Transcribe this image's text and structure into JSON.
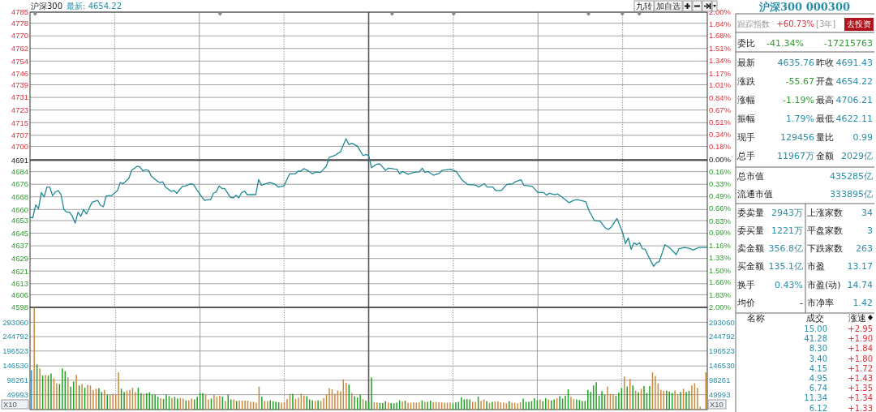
{
  "chart_data": [
    {
      "type": "line",
      "title": "沪深300",
      "subtitle": "最新: 4654.22",
      "annotations": [
        "九转",
        "加自选"
      ],
      "tick_labels": "y",
      "grid": true,
      "categories": [
        null,
        null,
        null,
        null,
        null,
        null,
        null,
        null,
        null,
        null,
        null,
        null,
        null,
        null,
        null,
        null,
        null,
        null,
        null,
        null,
        null,
        null,
        null,
        null,
        null,
        null,
        null,
        null,
        null,
        null,
        null,
        null,
        null,
        null,
        null,
        null,
        null,
        null,
        null,
        null,
        null,
        null,
        null,
        null,
        null,
        null,
        null,
        null,
        null,
        null,
        null,
        null,
        null,
        null,
        null,
        null,
        null,
        null,
        null,
        null,
        null,
        null,
        null,
        null,
        null,
        null,
        null,
        null,
        null,
        null,
        null,
        null,
        null,
        null,
        null,
        null,
        null,
        null,
        null,
        null,
        null,
        null,
        null,
        null,
        null,
        null,
        null,
        null,
        null,
        null,
        null,
        null,
        null,
        null,
        null,
        null,
        null,
        null,
        null,
        null,
        null,
        null,
        null,
        null,
        null,
        null,
        null,
        null,
        null,
        null,
        null,
        null,
        null,
        null,
        null,
        null,
        null,
        null,
        null,
        null,
        null,
        null,
        null,
        null,
        null,
        null,
        null,
        null,
        null,
        null,
        null,
        null,
        null,
        null,
        null,
        null,
        null,
        null,
        null,
        null,
        null,
        null,
        null,
        null,
        null,
        null,
        null,
        null,
        null,
        null,
        null,
        null,
        null,
        null,
        null,
        null,
        null,
        null,
        null,
        null,
        null,
        null,
        null,
        null,
        null,
        null,
        null,
        null,
        null,
        null,
        null,
        null,
        null,
        null,
        null,
        null,
        null,
        null,
        null,
        null,
        null,
        null,
        null,
        null,
        null,
        null,
        null,
        null,
        null,
        null,
        null,
        null,
        null,
        null,
        null,
        null,
        null,
        null,
        null,
        null,
        null,
        null,
        null,
        null,
        null,
        null,
        null,
        null,
        null,
        null,
        null,
        null,
        null,
        null,
        null,
        null,
        null,
        null,
        null,
        null,
        null,
        null,
        null,
        null,
        null,
        null,
        null,
        null,
        null,
        null,
        null,
        null,
        null,
        null,
        null,
        null,
        null,
        null,
        null,
        null,
        null
      ],
      "ylim": [
        4598,
        4785
      ],
      "yticks": [
        4598,
        4606,
        4613,
        4621,
        4629,
        4637,
        4645,
        4653,
        4660,
        4668,
        4676,
        4684,
        4691,
        4700,
        4707,
        4715,
        4723,
        4731,
        4739,
        4746,
        4754,
        4762,
        4770,
        4778,
        4785
      ],
      "y2lim": [
        -2,
        2
      ],
      "y2ticks": [
        {
          "value": -2,
          "label": "2.00%"
        },
        {
          "value": -1.83,
          "label": "1.83%"
        },
        {
          "value": -1.66,
          "label": "1.66%"
        },
        {
          "value": -1.5,
          "label": "1.50%"
        },
        {
          "value": -1.33,
          "label": "1.33%"
        },
        {
          "value": -1.16,
          "label": "1.16%"
        },
        {
          "value": -0.99,
          "label": "0.99%"
        },
        {
          "value": -0.83,
          "label": "0.83%"
        },
        {
          "value": -0.66,
          "label": "0.66%"
        },
        {
          "value": -0.49,
          "label": "0.49%"
        },
        {
          "value": -0.33,
          "label": "0.33%"
        },
        {
          "value": -0.16,
          "label": "0.16%"
        },
        {
          "value": 0,
          "label": "0.00%"
        },
        {
          "value": 0.18,
          "label": "0.18%"
        },
        {
          "value": 0.34,
          "label": "0.34%"
        },
        {
          "value": 0.51,
          "label": "0.51%"
        },
        {
          "value": 0.67,
          "label": "0.67%"
        },
        {
          "value": 0.84,
          "label": "0.84%"
        },
        {
          "value": 1.01,
          "label": "1.01%"
        },
        {
          "value": 1.17,
          "label": "1.17%"
        },
        {
          "value": 1.34,
          "label": "1.34%"
        },
        {
          "value": 1.51,
          "label": "1.51%"
        },
        {
          "value": 1.68,
          "label": "1.68%"
        },
        {
          "value": 1.84,
          "label": "1.84%"
        },
        {
          "value": 2,
          "label": "2.00%"
        }
      ],
      "ref_lines": [
        {
          "axis": "y",
          "value": 4691.43
        }
      ],
      "series": [
        {
          "color": "#1f8a94",
          "values": [
            4654.9,
            4654.9,
            4662.9,
            4660.5,
            4670.8,
            4668.0,
            4674.2,
            4674.2,
            4668.7,
            4671.1,
            4672.0,
            4669.4,
            4660.0,
            4658.3,
            4658.3,
            4655.7,
            4651.4,
            4658.3,
            4655.7,
            4660.0,
            4657.1,
            4660.9,
            4664.6,
            4665.2,
            4665.7,
            4662.6,
            4661.7,
            4668.6,
            4668.8,
            4668.9,
            4670.5,
            4672.0,
            4677.1,
            4676.3,
            4678.0,
            4679.7,
            4684.8,
            4686.1,
            4687.4,
            4686.9,
            4684.5,
            4685.2,
            4684.8,
            4681.1,
            4679.6,
            4678.1,
            4677.1,
            4677.6,
            4674.2,
            4672.9,
            4671.5,
            4672.0,
            4670.3,
            4672.5,
            4674.6,
            4674.9,
            4675.6,
            4676.3,
            4675.8,
            4672.8,
            4670.3,
            4667.7,
            4665.7,
            4666.3,
            4666.3,
            4670.3,
            4671.1,
            4674.9,
            4673.4,
            4673.2,
            4670.5,
            4667.7,
            4667.4,
            4669.1,
            4667.4,
            4670.8,
            4671.6,
            4669.4,
            4669.4,
            4669.4,
            4669.4,
            4679.0,
            4675.4,
            4676.0,
            4676.6,
            4677.1,
            4676.5,
            4675.8,
            4674.2,
            4674.6,
            4674.9,
            4678.8,
            4682.6,
            4682.6,
            4682.6,
            4684.3,
            4684.3,
            4685.9,
            4685.0,
            4684.0,
            4682.6,
            4683.6,
            4683.6,
            4683.5,
            4685.5,
            4687.4,
            4693.0,
            4693.6,
            4694.2,
            4695.4,
            4696.5,
            4700.7,
            4704.9,
            4701.1,
            4702.0,
            4701.1,
            4700.2,
            4697.2,
            4694.2,
            4694.8,
            4694.2,
            4686.5,
            4687.7,
            4688.8,
            4688.8,
            4686.8,
            4684.8,
            4686.2,
            4686.0,
            4685.7,
            4685.5,
            4682.6,
            4684.1,
            4683.2,
            4682.3,
            4682.9,
            4683.5,
            4683.7,
            4683.9,
            4686.2,
            4683.5,
            4684.1,
            4682.9,
            4681.7,
            4682.3,
            4682.8,
            4684.8,
            4685.0,
            4685.3,
            4685.5,
            4684.8,
            4684.1,
            4681.5,
            4678.8,
            4677.4,
            4675.9,
            4675.7,
            4675.6,
            4675.4,
            4674.2,
            4675.3,
            4676.3,
            4674.2,
            4674.2,
            4674.2,
            4672.0,
            4672.0,
            4672.0,
            4674.0,
            4675.9,
            4676.1,
            4676.3,
            4677.6,
            4678.2,
            4678.8,
            4675.4,
            4675.1,
            4674.9,
            4674.6,
            4672.7,
            4670.8,
            4670.8,
            4670.8,
            4669.1,
            4670.3,
            4669.9,
            4669.4,
            4669.8,
            4668.5,
            4667.2,
            4665.8,
            4664.3,
            4665.2,
            4666.0,
            4666.3,
            4665.8,
            4665.4,
            4664.9,
            4659.5,
            4656.3,
            4653.0,
            4652.8,
            4652.6,
            4650.3,
            4648.0,
            4647.5,
            4648.9,
            4651.6,
            4654.3,
            4649.9,
            4645.4,
            4638.3,
            4642.0,
            4634.8,
            4638.9,
            4637.7,
            4638.9,
            4635.2,
            4634.8,
            4630.9,
            4627.5,
            4624.0,
            4626.3,
            4627.0,
            4632.4,
            4637.7,
            4636.5,
            4635.2,
            4633.3,
            4631.4,
            4635.2,
            4635.6,
            4636.0,
            4635.6,
            4635.2,
            4634.3,
            4635.2,
            4636.0,
            4636.0,
            4636.0,
            4636.0
          ]
        }
      ]
    },
    {
      "type": "bar",
      "tick_labels": "y",
      "grid": true,
      "ylabel": "X10",
      "y2label": "X10",
      "categories": [
        null,
        null,
        null,
        null,
        null,
        null,
        null,
        null,
        null,
        null,
        null,
        null,
        null,
        null,
        null,
        null,
        null,
        null,
        null,
        null,
        null,
        null,
        null,
        null,
        null,
        null,
        null,
        null,
        null,
        null,
        null,
        null,
        null,
        null,
        null,
        null,
        null,
        null,
        null,
        null,
        null,
        null,
        null,
        null,
        null,
        null,
        null,
        null,
        null,
        null,
        null,
        null,
        null,
        null,
        null,
        null,
        null,
        null,
        null,
        null,
        null,
        null,
        null,
        null,
        null,
        null,
        null,
        null,
        null,
        null,
        null,
        null,
        null,
        null,
        null,
        null,
        null,
        null,
        null,
        null,
        null,
        null,
        null,
        null,
        null,
        null,
        null,
        null,
        null,
        null,
        null,
        null,
        null,
        null,
        null,
        null,
        null,
        null,
        null,
        null,
        null,
        null,
        null,
        null,
        null,
        null,
        null,
        null,
        null,
        null,
        null,
        null,
        null,
        null,
        null,
        null,
        null,
        null,
        null,
        null,
        null,
        null,
        null,
        null,
        null,
        null,
        null,
        null,
        null,
        null,
        null,
        null,
        null,
        null,
        null,
        null,
        null,
        null,
        null,
        null,
        null,
        null,
        null,
        null,
        null,
        null,
        null,
        null,
        null,
        null,
        null,
        null,
        null,
        null,
        null,
        null,
        null,
        null,
        null,
        null,
        null,
        null,
        null,
        null,
        null,
        null,
        null,
        null,
        null,
        null,
        null,
        null,
        null,
        null,
        null,
        null,
        null,
        null,
        null,
        null,
        null,
        null,
        null,
        null,
        null,
        null,
        null,
        null,
        null,
        null,
        null,
        null,
        null,
        null,
        null,
        null,
        null,
        null,
        null,
        null,
        null,
        null,
        null,
        null,
        null,
        null,
        null,
        null,
        null,
        null,
        null,
        null,
        null,
        null,
        null,
        null,
        null,
        null,
        null,
        null,
        null,
        null,
        null,
        null,
        null,
        null,
        null,
        null,
        null,
        null,
        null,
        null,
        null,
        null,
        null,
        null,
        null,
        null,
        null,
        null,
        null
      ],
      "ylim": [
        0,
        343000
      ],
      "yticks": [
        49993,
        98261,
        146530,
        196523,
        244792,
        293060
      ],
      "y2lim": [
        0,
        343000
      ],
      "y2ticks": [
        49993,
        98261,
        146530,
        196523,
        244792,
        293060
      ],
      "values": [
        132000,
        342000,
        152000,
        138000,
        114000,
        116000,
        114000,
        121000,
        105000,
        88000,
        86000,
        138000,
        129000,
        108000,
        77000,
        94000,
        116000,
        81000,
        86000,
        73000,
        83000,
        81000,
        66000,
        70000,
        72000,
        59000,
        66000,
        50000,
        50000,
        53000,
        50000,
        125000,
        70000,
        59000,
        63000,
        66000,
        73000,
        59000,
        74000,
        55000,
        53000,
        55000,
        58000,
        50000,
        50000,
        43000,
        38000,
        36000,
        50000,
        45000,
        39000,
        43000,
        37000,
        39000,
        37000,
        31000,
        31000,
        37000,
        34000,
        43000,
        56000,
        55000,
        50000,
        34000,
        37000,
        50000,
        43000,
        46000,
        43000,
        29000,
        50000,
        34000,
        34000,
        29000,
        30000,
        30000,
        30000,
        30000,
        26000,
        26000,
        23000,
        77000,
        43000,
        29000,
        29000,
        31000,
        28000,
        26000,
        24000,
        23000,
        24000,
        36000,
        53000,
        53000,
        36000,
        40000,
        53000,
        47000,
        45000,
        34000,
        31000,
        29000,
        31000,
        29000,
        39000,
        50000,
        72000,
        68000,
        53000,
        64000,
        61000,
        102000,
        90000,
        84000,
        56000,
        45000,
        41000,
        50000,
        35000,
        30000,
        26000,
        108000,
        24000,
        24000,
        22000,
        22000,
        28000,
        23000,
        22000,
        21000,
        23000,
        31000,
        27000,
        30000,
        23000,
        23000,
        24000,
        23000,
        24000,
        31000,
        26000,
        26000,
        30000,
        24000,
        26000,
        24000,
        24000,
        23000,
        23000,
        23000,
        21000,
        24000,
        26000,
        41000,
        34000,
        35000,
        34000,
        26000,
        26000,
        43000,
        29000,
        34000,
        28000,
        22000,
        26000,
        27000,
        28000,
        24000,
        23000,
        21000,
        28000,
        23000,
        23000,
        21000,
        24000,
        37000,
        26000,
        26000,
        28000,
        38000,
        31000,
        34000,
        28000,
        38000,
        34000,
        31000,
        34000,
        38000,
        45000,
        37000,
        46000,
        68000,
        43000,
        35000,
        34000,
        32000,
        29000,
        29000,
        66000,
        59000,
        81000,
        92000,
        47000,
        62000,
        50000,
        77000,
        53000,
        50000,
        46000,
        57000,
        72000,
        111000,
        77000,
        103000,
        81000,
        63000,
        58000,
        70000,
        79000,
        56000,
        79000,
        125000,
        113000,
        88000,
        66000,
        63000,
        64000,
        61000,
        56000,
        64000,
        52000,
        59000,
        70000,
        59000,
        63000,
        81000,
        88000,
        73000,
        10000,
        null,
        125000
      ],
      "colors": [
        "#3f95b5",
        "#c98a3e",
        "#21a121",
        "#c98a3e",
        "#21a121",
        "#c98a3e",
        "#21a121",
        "#21a121",
        "#c98a3e",
        "#c98a3e",
        "#21a121",
        "#21a121",
        "#21a121",
        "#c98a3e",
        "#21a121",
        "#21a121",
        "#c98a3e",
        "#21a121",
        "#c98a3e",
        "#21a121",
        "#c98a3e",
        "#c98a3e",
        "#c98a3e",
        "#c98a3e",
        "#21a121",
        "#21a121",
        "#c98a3e",
        "#21a121",
        "#c98a3e",
        "#c98a3e",
        "#c98a3e",
        "#c98a3e",
        "#21a121",
        "#21a121",
        "#c98a3e",
        "#c98a3e",
        "#c98a3e",
        "#c98a3e",
        "#21a121",
        "#21a121",
        "#c98a3e",
        "#21a121",
        "#21a121",
        "#21a121",
        "#21a121",
        "#21a121",
        "#c98a3e",
        "#21a121",
        "#21a121",
        "#21a121",
        "#c98a3e",
        "#21a121",
        "#21a121",
        "#c98a3e",
        "#c98a3e",
        "#21a121",
        "#c98a3e",
        "#c98a3e",
        "#21a121",
        "#21a121",
        "#21a121",
        "#21a121",
        "#c98a3e",
        "#c98a3e",
        "#21a121",
        "#c98a3e",
        "#c98a3e",
        "#c98a3e",
        "#21a121",
        "#c98a3e",
        "#21a121",
        "#21a121",
        "#c98a3e",
        "#21a121",
        "#c98a3e",
        "#c98a3e",
        "#c98a3e",
        "#c98a3e",
        "#c98a3e",
        "#c98a3e",
        "#c98a3e",
        "#c98a3e",
        "#21a121",
        "#c98a3e",
        "#c98a3e",
        "#21a121",
        "#21a121",
        "#21a121",
        "#21a121",
        "#c98a3e",
        "#c98a3e",
        "#c98a3e",
        "#c98a3e",
        "#21a121",
        "#c98a3e",
        "#c98a3e",
        "#c98a3e",
        "#c98a3e",
        "#21a121",
        "#21a121",
        "#21a121",
        "#c98a3e",
        "#21a121",
        "#c98a3e",
        "#c98a3e",
        "#c98a3e",
        "#c98a3e",
        "#c98a3e",
        "#c98a3e",
        "#c98a3e",
        "#c98a3e",
        "#c98a3e",
        "#c98a3e",
        "#21a121",
        "#c98a3e",
        "#21a121",
        "#21a121",
        "#21a121",
        "#c98a3e",
        "#21a121",
        "#21a121",
        "#21a121",
        "#c98a3e",
        "#c98a3e",
        "#21a121",
        "#21a121",
        "#21a121",
        "#c98a3e",
        "#21a121",
        "#21a121",
        "#21a121",
        "#21a121",
        "#c98a3e",
        "#21a121",
        "#c98a3e",
        "#c98a3e",
        "#c98a3e",
        "#c98a3e",
        "#c98a3e",
        "#21a121",
        "#c98a3e",
        "#21a121",
        "#21a121",
        "#c98a3e",
        "#c98a3e",
        "#c98a3e",
        "#c98a3e",
        "#c98a3e",
        "#c98a3e",
        "#c98a3e",
        "#21a121",
        "#21a121",
        "#21a121",
        "#21a121",
        "#21a121",
        "#21a121",
        "#21a121",
        "#c98a3e",
        "#c98a3e",
        "#21a121",
        "#c98a3e",
        "#c98a3e",
        "#21a121",
        "#c98a3e",
        "#21a121",
        "#c98a3e",
        "#c98a3e",
        "#c98a3e",
        "#c98a3e",
        "#c98a3e",
        "#21a121",
        "#c98a3e",
        "#c98a3e",
        "#c98a3e",
        "#c98a3e",
        "#21a121",
        "#21a121",
        "#21a121",
        "#21a121",
        "#21a121",
        "#21a121",
        "#c98a3e",
        "#21a121",
        "#21a121",
        "#c98a3e",
        "#21a121",
        "#21a121",
        "#c98a3e",
        "#21a121",
        "#21a121",
        "#21a121",
        "#21a121",
        "#c98a3e",
        "#c98a3e",
        "#21a121",
        "#21a121",
        "#21a121",
        "#21a121",
        "#21a121",
        "#21a121",
        "#21a121",
        "#21a121",
        "#21a121",
        "#21a121",
        "#21a121",
        "#c98a3e",
        "#c98a3e",
        "#c98a3e",
        "#21a121",
        "#21a121",
        "#21a121",
        "#c98a3e",
        "#21a121",
        "#c98a3e",
        "#21a121",
        "#c98a3e",
        "#21a121",
        "#c98a3e",
        "#21a121",
        "#21a121",
        "#21a121",
        "#c98a3e",
        "#c98a3e",
        "#c98a3e",
        "#c98a3e",
        "#c98a3e",
        "#21a121",
        "#21a121",
        "#21a121",
        "#c98a3e",
        "#c98a3e",
        "#21a121",
        "#c98a3e",
        "#21a121",
        "#21a121",
        "#c98a3e",
        "#c98a3e",
        "#c98a3e",
        "#c98a3e",
        null,
        "#c98a3e"
      ]
    },
    {
      "type": "other",
      "title": "沪深300 000300",
      "annotations": [
        "跟踪指数",
        "+60.73%",
        "[3年]",
        "去投资",
        "委比",
        "-41.34%",
        "-17215763",
        "最新",
        "4635.76",
        "昨收",
        "4691.43",
        "涨跌",
        "-55.67",
        "开盘",
        "4654.22",
        "涨幅",
        "-1.19%",
        "最高",
        "4706.21",
        "振幅",
        "1.79%",
        "最低",
        "4622.11",
        "现手",
        "129456",
        "量比",
        "0.99",
        "总手",
        "11967万",
        "金额",
        "2029亿",
        "总市值",
        "435285亿",
        "流通市值",
        "333895亿",
        "委卖量",
        "2943万",
        "上涨家数",
        "34",
        "委买量",
        "1221万",
        "平盘家数",
        "3",
        "卖金额",
        "356.8亿",
        "下跌家数",
        "263",
        "买金额",
        "135.1亿",
        "市盈",
        "13.17",
        "换手",
        "0.43%",
        "市盈(动)",
        "14.74",
        "均价",
        "-",
        "市净率",
        "1.42",
        "名称",
        "成交",
        "涨速",
        "15.00",
        "+2.95",
        "41.28",
        "+1.90",
        "8.30",
        "+1.84",
        "3.40",
        "+1.80",
        "4.15",
        "+1.72",
        "4.95",
        "+1.43",
        "6.74",
        "+1.35",
        "11.34",
        "+1.34",
        "6.12",
        "+1.33"
      ]
    }
  ]
}
